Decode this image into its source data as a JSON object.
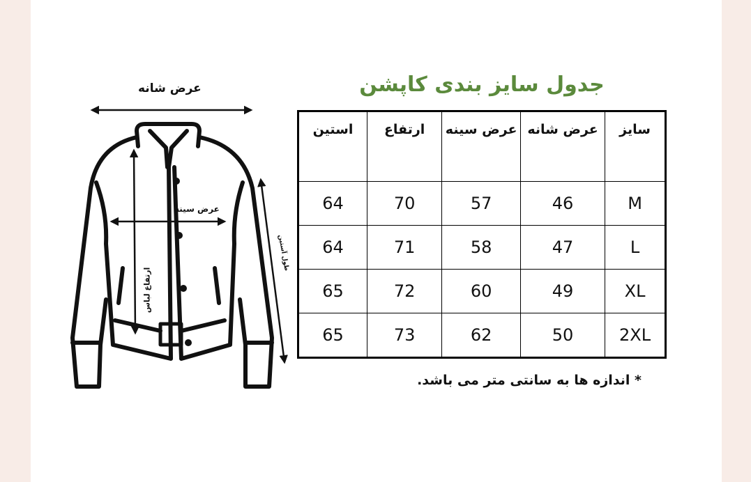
{
  "title": "جدول سایز بندی کاپشن",
  "diagram": {
    "shoulder_label": "عرض شانه",
    "chest_label": "عرض سینه",
    "length_label": "ارتفاع لباس",
    "sleeve_label": "طول آستین"
  },
  "table": {
    "headers": [
      "سایز",
      "عرض شانه",
      "عرض سینه",
      "ارتفاع",
      "استین"
    ],
    "rows": [
      [
        "M",
        "46",
        "57",
        "70",
        "64"
      ],
      [
        "L",
        "47",
        "58",
        "71",
        "64"
      ],
      [
        "XL",
        "49",
        "60",
        "72",
        "65"
      ],
      [
        "2XL",
        "50",
        "62",
        "73",
        "65"
      ]
    ]
  },
  "note": "* اندازه ها به سانتی متر می باشد.",
  "colors": {
    "title": "#5b8a3c",
    "margin": "#f8ece7"
  }
}
